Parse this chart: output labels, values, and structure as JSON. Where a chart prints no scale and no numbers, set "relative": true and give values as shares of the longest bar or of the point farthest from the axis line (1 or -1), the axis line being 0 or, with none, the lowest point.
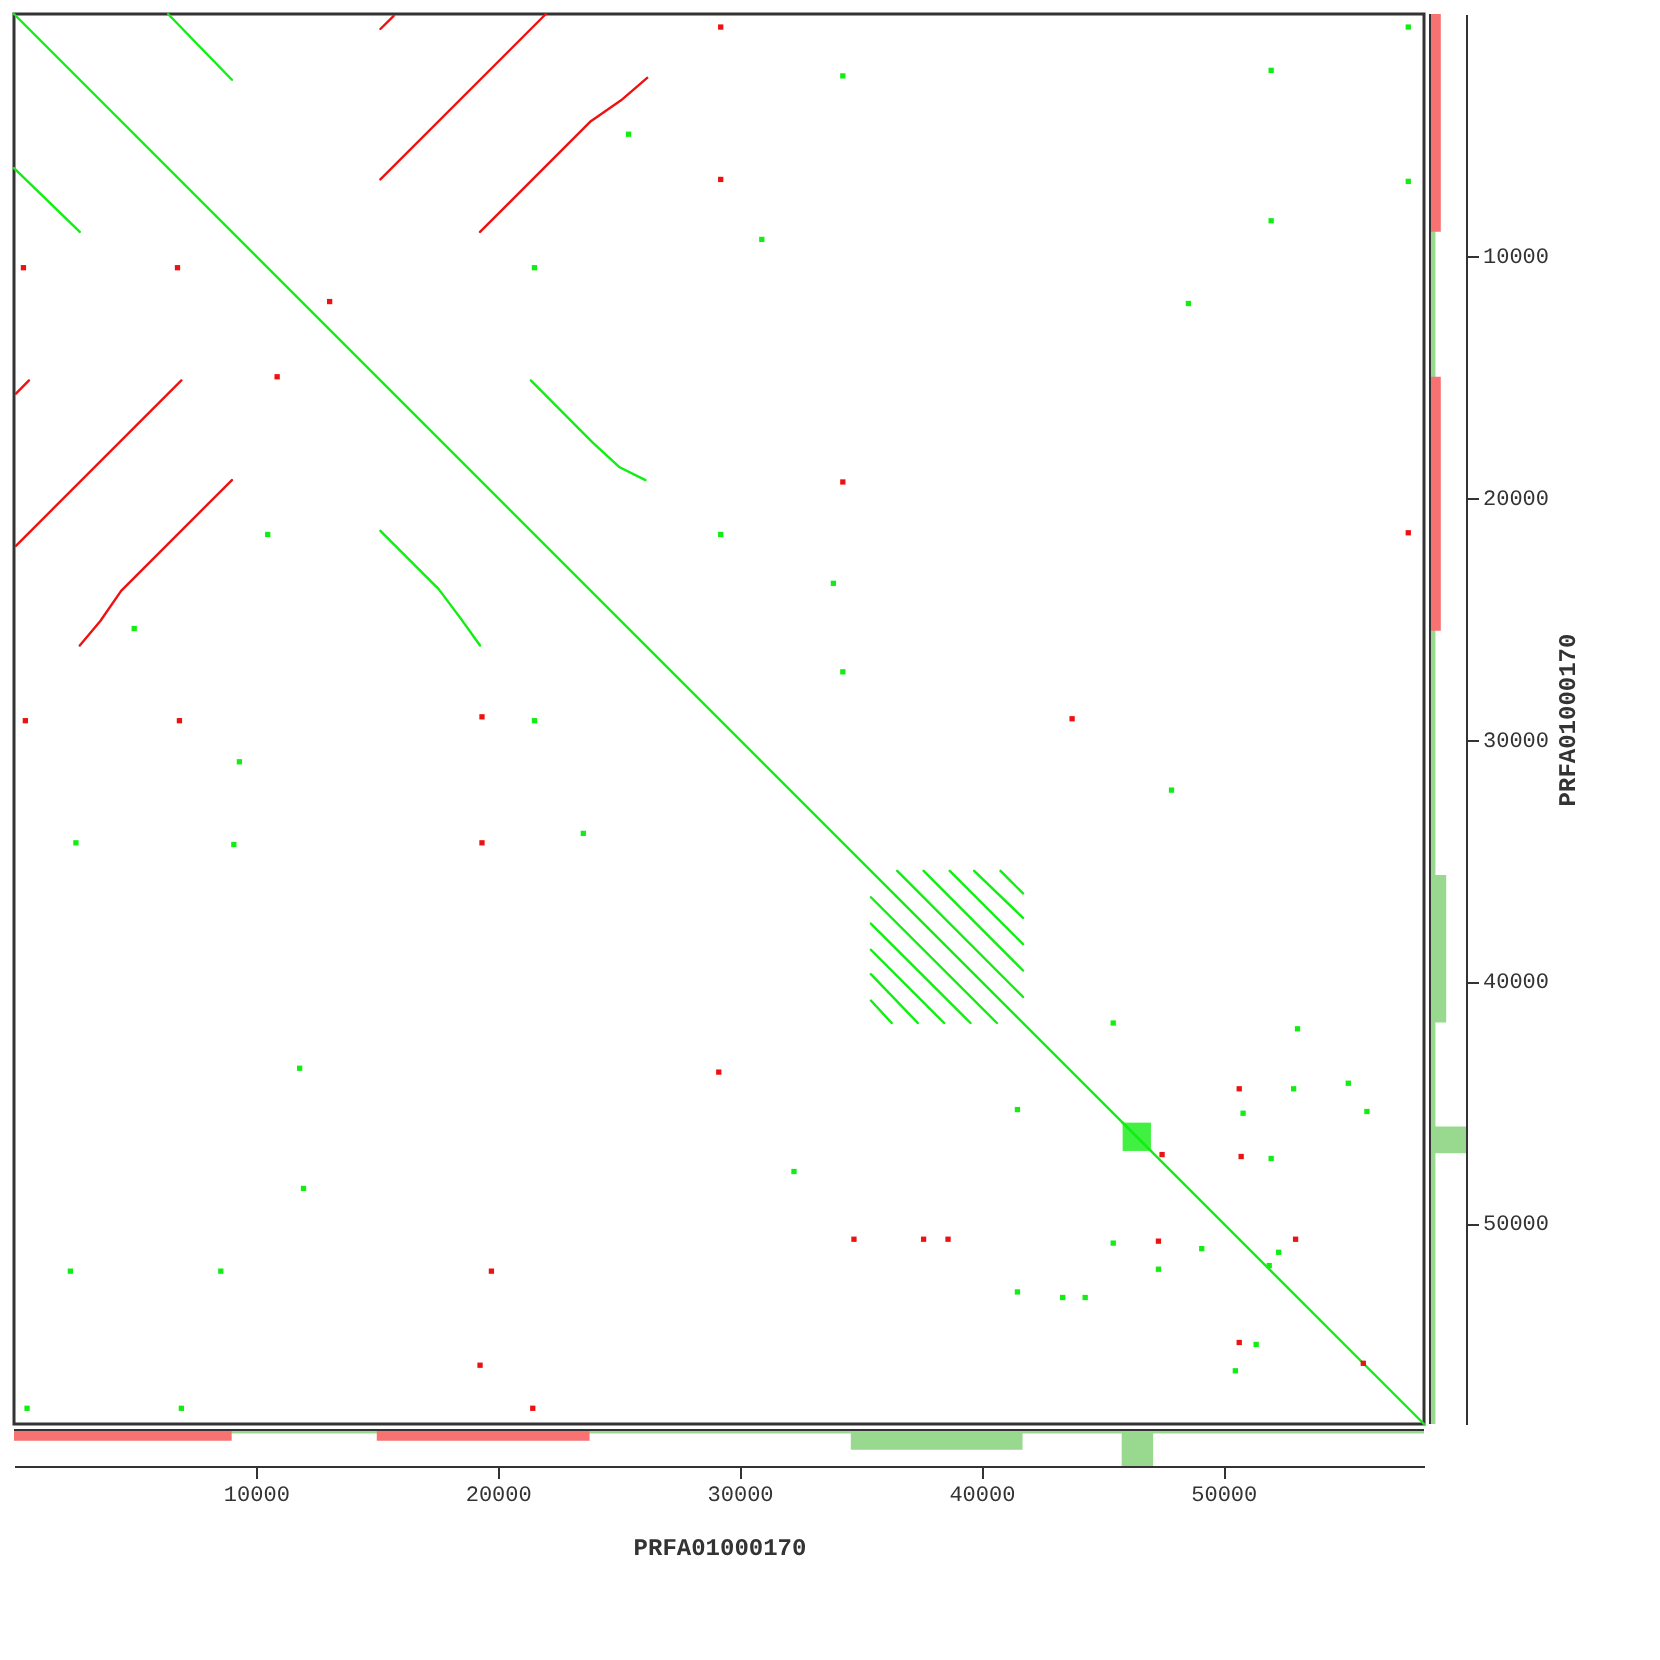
{
  "chart_data": [
    {
      "type": "line",
      "xlim": [
        0,
        58300
      ],
      "ylim": [
        58300,
        0
      ],
      "xticks": [
        10000,
        20000,
        30000,
        40000,
        50000
      ],
      "yticks": [
        10000,
        20000,
        30000,
        40000,
        50000
      ],
      "tick_labels": false,
      "series": [
        {
          "color": "#11ee11",
          "x": [
            0,
            58300
          ],
          "values": [
            0,
            58300
          ]
        },
        {
          "color": "#11ee11",
          "x": [
            6370,
            9010
          ],
          "values": [
            0,
            2720
          ]
        },
        {
          "color": "#11ee11",
          "x": [
            0,
            2720
          ],
          "values": [
            6370,
            9010
          ]
        },
        {
          "color": "#11ee11",
          "x": [
            21370,
            23930,
            25020,
            26110
          ],
          "values": [
            15150,
            17720,
            18730,
            19270
          ]
        },
        {
          "color": "#11ee11",
          "x": [
            15150,
            17560,
            18490,
            19270
          ],
          "values": [
            21370,
            23780,
            25020,
            26110
          ]
        },
        {
          "color": "#11ee11",
          "x": [
            36520,
            41720
          ],
          "values": [
            35430,
            40640
          ]
        },
        {
          "color": "#11ee11",
          "x": [
            37610,
            41720
          ],
          "values": [
            35430,
            39550
          ]
        },
        {
          "color": "#11ee11",
          "x": [
            38690,
            41720
          ],
          "values": [
            35430,
            38460
          ]
        },
        {
          "color": "#11ee11",
          "x": [
            39700,
            41720
          ],
          "values": [
            35430,
            37370
          ]
        },
        {
          "color": "#11ee11",
          "x": [
            40790,
            41720
          ],
          "values": [
            35430,
            36360
          ]
        },
        {
          "color": "#11ee11",
          "x": [
            35430,
            40640
          ],
          "values": [
            36520,
            41720
          ]
        },
        {
          "color": "#11ee11",
          "x": [
            35430,
            39550
          ],
          "values": [
            37610,
            41720
          ]
        },
        {
          "color": "#11ee11",
          "x": [
            35430,
            38460
          ],
          "values": [
            38690,
            41720
          ]
        },
        {
          "color": "#11ee11",
          "x": [
            35430,
            37370
          ],
          "values": [
            39700,
            41720
          ]
        },
        {
          "color": "#11ee11",
          "x": [
            35430,
            36290
          ],
          "values": [
            40790,
            41720
          ]
        },
        {
          "color": "#11ee11",
          "x": [
            45840,
            47010
          ],
          "values": [
            45840,
            47010
          ],
          "lower": [
            45840,
            45840
          ],
          "upper": [
            47010,
            47010
          ]
        },
        {
          "color": "#ee1111",
          "x": [
            15150,
            21990
          ],
          "values": [
            6840,
            0
          ]
        },
        {
          "color": "#ee1111",
          "x": [
            19270,
            23850,
            25100,
            26180
          ],
          "values": [
            9010,
            4430,
            3570,
            2640
          ]
        },
        {
          "color": "#ee1111",
          "x": [
            80,
            6920
          ],
          "values": [
            21990,
            15150
          ]
        },
        {
          "color": "#ee1111",
          "x": [
            2720,
            3570,
            4430,
            9010
          ],
          "values": [
            26110,
            25100,
            23850,
            19270
          ]
        },
        {
          "color": "#ee1111",
          "x": [
            15150,
            15700
          ],
          "values": [
            620,
            80
          ]
        },
        {
          "color": "#ee1111",
          "x": [
            80,
            620
          ],
          "values": [
            15700,
            15150
          ]
        },
        {
          "type": "scatter",
          "marker": "square",
          "color": "#11ee11",
          "x": [
            25410,
            21520,
            10490,
            4970,
            29220,
            21520,
            34270,
            30920,
            51980,
            51980,
            57650,
            57650,
            48560,
            33880,
            34270,
            9320,
            2560,
            9090,
            11810,
            11970,
            23540,
            2330,
            8550,
            540,
            6920,
            47860,
            45450,
            53070,
            52910,
            55170,
            41490,
            50820,
            55940,
            51980,
            32250,
            45450,
            47320,
            43360,
            49110,
            51900,
            52290,
            41490,
            44290,
            51360,
            50500
          ],
          "values": [
            4970,
            10490,
            21520,
            25410,
            21520,
            29220,
            2560,
            9320,
            2330,
            8550,
            540,
            6920,
            11970,
            23540,
            27200,
            30920,
            34270,
            34340,
            43590,
            48560,
            33880,
            51980,
            51980,
            57650,
            57650,
            32090,
            41720,
            41960,
            44440,
            44210,
            45300,
            45450,
            45380,
            47320,
            47860,
            50820,
            51900,
            53070,
            51050,
            51750,
            51200,
            52840,
            53070,
            55010,
            56100
          ]
        },
        {
          "type": "scatter",
          "marker": "square",
          "color": "#ee1111",
          "x": [
            390,
            6760,
            13050,
            10880,
            29220,
            29220,
            470,
            6840,
            19350,
            34270,
            57650,
            43750,
            19350,
            21450,
            29140,
            19740,
            19270,
            50660,
            47470,
            50740,
            34730,
            37610,
            38620,
            47320,
            52990,
            50660,
            55790
          ],
          "values": [
            10490,
            10490,
            11890,
            15000,
            540,
            6840,
            29220,
            29220,
            29060,
            19350,
            21450,
            29140,
            34270,
            57650,
            43750,
            51980,
            55870,
            44440,
            47160,
            47240,
            50660,
            50660,
            50660,
            50740,
            50660,
            54930,
            55790
          ]
        }
      ]
    },
    {
      "type": "area",
      "orientation": "horizontal",
      "relative": true,
      "ylim": [
        58300,
        0
      ],
      "yticks": [
        10000,
        20000,
        30000,
        40000,
        50000
      ],
      "tick_labels": "y",
      "ylabel": "PRFA01000170",
      "series": [
        {
          "color": "#99d98f",
          "x": [
            0,
            35600,
            41700,
            46000,
            47100,
            58300
          ],
          "values": [
            0.15,
            0.45,
            0.15,
            1,
            0.15,
            0.15
          ]
        },
        {
          "color": "#f87272",
          "x": [
            0,
            9000,
            15000,
            25500,
            58300
          ],
          "values": [
            0.3,
            0,
            0.3,
            0,
            0
          ]
        }
      ]
    },
    {
      "type": "area",
      "relative": true,
      "xlim": [
        0,
        58300
      ],
      "xticks": [
        10000,
        20000,
        30000,
        40000,
        50000
      ],
      "tick_labels": "x",
      "xlabel": "PRFA01000170",
      "series": [
        {
          "color": "#99d98f",
          "x": [
            0,
            34600,
            41700,
            45800,
            47100,
            58300
          ],
          "values": [
            -0.1,
            -0.55,
            -0.1,
            -1,
            -0.1,
            -0.1
          ]
        },
        {
          "color": "#f87272",
          "x": [
            0,
            9000,
            15000,
            23800,
            58300
          ],
          "values": [
            -0.3,
            0,
            -0.3,
            0,
            0
          ]
        }
      ]
    }
  ]
}
